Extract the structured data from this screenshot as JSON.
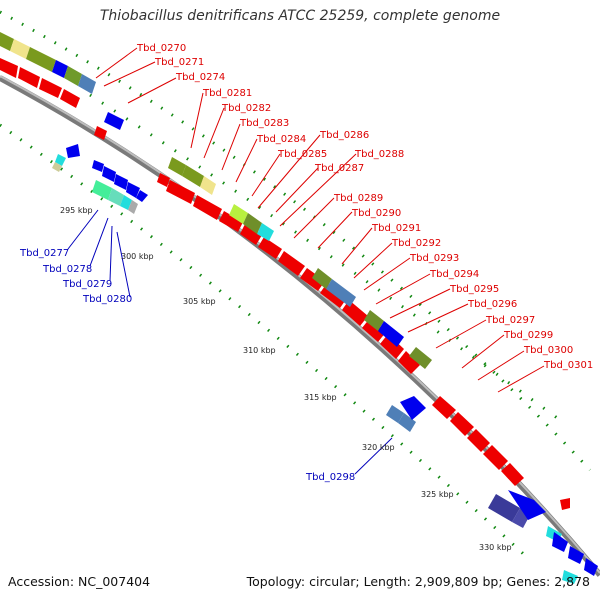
{
  "title": "Thiobacillus denitrificans ATCC 25259, complete genome",
  "footer": {
    "accession": "Accession: NC_007404",
    "topology": "Topology: circular; Length: 2,909,809 bp; Genes: 2,878"
  },
  "colors": {
    "forward_label": "#dd0000",
    "reverse_label": "#0000bb",
    "backbone": "#8a8a8a",
    "tick_dots": "#118811"
  },
  "scale_labels": [
    "295 kbp",
    "300 kbp",
    "305 kbp",
    "310 kbp",
    "315 kbp",
    "320 kbp",
    "325 kbp",
    "330 kbp"
  ],
  "forward_labels": [
    "Tbd_0270",
    "Tbd_0271",
    "Tbd_0274",
    "Tbd_0281",
    "Tbd_0282",
    "Tbd_0283",
    "Tbd_0284",
    "Tbd_0285",
    "Tbd_0286",
    "Tbd_0287",
    "Tbd_0288",
    "Tbd_0289",
    "Tbd_0290",
    "Tbd_0291",
    "Tbd_0292",
    "Tbd_0293",
    "Tbd_0294",
    "Tbd_0295",
    "Tbd_0296",
    "Tbd_0297",
    "Tbd_0299",
    "Tbd_0300",
    "Tbd_0301"
  ],
  "reverse_labels": [
    "Tbd_0277",
    "Tbd_0278",
    "Tbd_0279",
    "Tbd_0280",
    "Tbd_0298"
  ]
}
